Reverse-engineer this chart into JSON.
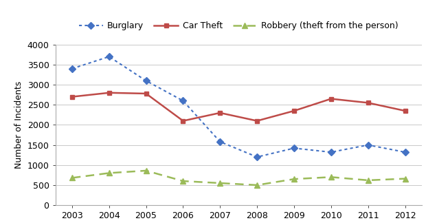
{
  "years": [
    2003,
    2004,
    2005,
    2006,
    2007,
    2008,
    2009,
    2010,
    2011,
    2012
  ],
  "burglary": [
    3400,
    3700,
    3100,
    2600,
    1580,
    1200,
    1420,
    1320,
    1500,
    1320
  ],
  "car_theft": [
    2700,
    2800,
    2780,
    2100,
    2300,
    2100,
    2350,
    2650,
    2550,
    2350
  ],
  "robbery": [
    680,
    800,
    860,
    600,
    550,
    500,
    650,
    700,
    620,
    660
  ],
  "burglary_color": "#4472C4",
  "car_theft_color": "#BE4B48",
  "robbery_color": "#9BBB59",
  "ylabel": "Number of Incidents",
  "ylim": [
    0,
    4000
  ],
  "yticks": [
    0,
    500,
    1000,
    1500,
    2000,
    2500,
    3000,
    3500,
    4000
  ],
  "legend_labels": [
    "Burglary",
    "Car Theft",
    "Robbery (theft from the person)"
  ],
  "bg_color": "#FFFFFF",
  "plot_bg_color": "#FFFFFF",
  "grid_color": "#C0C0C0"
}
